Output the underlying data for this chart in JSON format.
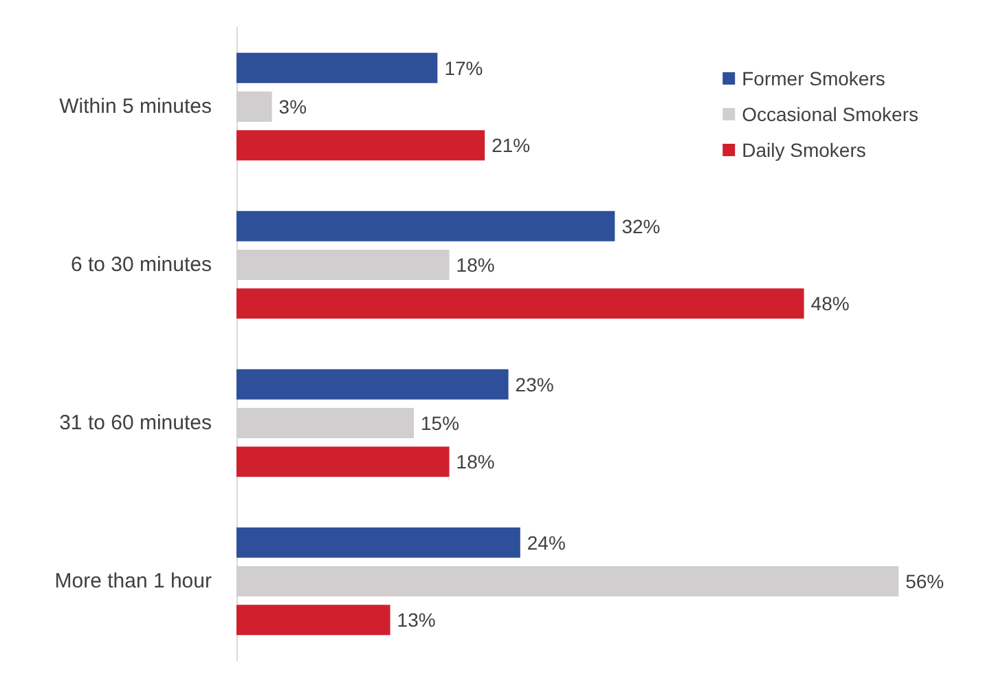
{
  "chart_data": {
    "type": "bar",
    "orientation": "horizontal",
    "categories": [
      "Within 5 minutes",
      "6 to 30 minutes",
      "31 to 60 minutes",
      "More than 1 hour"
    ],
    "series": [
      {
        "name": "Former Smokers",
        "color": "#2e4f9a",
        "values": [
          17,
          32,
          23,
          24
        ],
        "value_labels": [
          "17%",
          "32%",
          "23%",
          "24%"
        ]
      },
      {
        "name": "Occasional Smokers",
        "color": "#d0cecf",
        "values": [
          3,
          18,
          15,
          56
        ],
        "value_labels": [
          "3%",
          "18%",
          "15%",
          "56%"
        ]
      },
      {
        "name": "Daily Smokers",
        "color": "#d0202e",
        "values": [
          21,
          48,
          18,
          13
        ],
        "value_labels": [
          "21%",
          "48%",
          "18%",
          "13%"
        ]
      }
    ],
    "legend": "top right",
    "tick_labels": "y"
  }
}
